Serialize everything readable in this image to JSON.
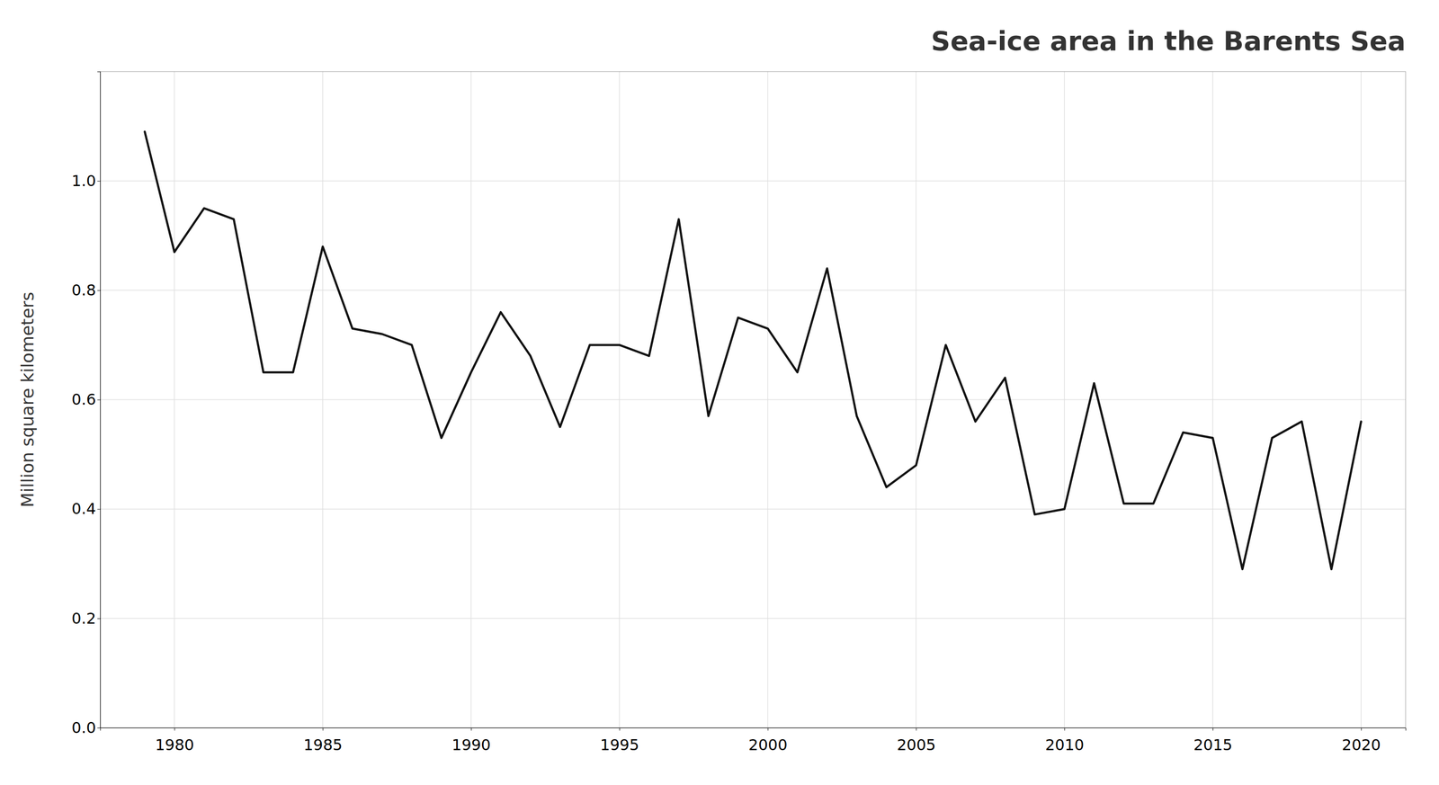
{
  "chart_data": {
    "type": "line",
    "title": "Sea-ice area in the Barents Sea",
    "ylabel": "Million square kilometers",
    "x": [
      1979,
      1980,
      1981,
      1982,
      1983,
      1984,
      1985,
      1986,
      1987,
      1988,
      1989,
      1990,
      1991,
      1992,
      1993,
      1994,
      1995,
      1996,
      1997,
      1998,
      1999,
      2000,
      2001,
      2002,
      2003,
      2004,
      2005,
      2006,
      2007,
      2008,
      2009,
      2010,
      2011,
      2012,
      2013,
      2014,
      2015,
      2016,
      2017,
      2018,
      2019,
      2020
    ],
    "values": [
      1.09,
      0.87,
      0.95,
      0.93,
      0.65,
      0.65,
      0.88,
      0.73,
      0.72,
      0.7,
      0.53,
      0.65,
      0.76,
      0.68,
      0.55,
      0.7,
      0.7,
      0.68,
      0.93,
      0.57,
      0.75,
      0.73,
      0.65,
      0.84,
      0.57,
      0.44,
      0.48,
      0.7,
      0.56,
      0.64,
      0.39,
      0.4,
      0.63,
      0.41,
      0.41,
      0.54,
      0.53,
      0.29,
      0.53,
      0.56,
      0.29,
      0.56
    ],
    "color": "#111111",
    "xlim": [
      1977.5,
      2021.5
    ],
    "ylim": [
      0.0,
      1.2
    ],
    "xticks": [
      1980,
      1985,
      1990,
      1995,
      2000,
      2005,
      2010,
      2015,
      2020
    ],
    "yticks": [
      {
        "value": 0.0,
        "label": "0.0"
      },
      0.2,
      0.4,
      0.6,
      0.8,
      {
        "value": 1.0,
        "label": "1.0"
      }
    ],
    "grid": true
  }
}
